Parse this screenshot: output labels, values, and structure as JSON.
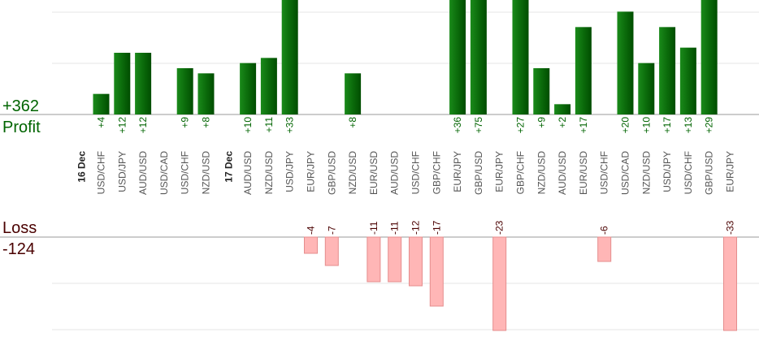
{
  "summary": {
    "profit_total": "+362",
    "profit_label": "Profit",
    "loss_label": "Loss",
    "loss_total": "-124"
  },
  "colors": {
    "profit_bar": "#0b6b0b",
    "profit_text": "#006400",
    "loss_bar": "#ffb6b6",
    "loss_bar_edge": "#e58d8d",
    "loss_text": "#4a0000",
    "axis_text": "#555555",
    "grid": "#e6e6e6"
  },
  "chart_data": {
    "type": "bar",
    "grid": true,
    "date_labels": [
      {
        "label": "16 Dec",
        "before_index": 0
      },
      {
        "label": "17 Dec",
        "before_index": 6
      }
    ],
    "categories": [
      "USD/CHF",
      "USD/JPY",
      "AUD/USD",
      "USD/CAD",
      "USD/CHF",
      "NZD/USD",
      "AUD/USD",
      "NZD/USD",
      "USD/JPY",
      "EUR/JPY",
      "GBP/USD",
      "NZD/USD",
      "EUR/USD",
      "AUD/USD",
      "USD/CHF",
      "GBP/CHF",
      "EUR/JPY",
      "GBP/USD",
      "EUR/JPY",
      "GBP/CHF",
      "NZD/USD",
      "AUD/USD",
      "EUR/USD",
      "USD/CHF",
      "USD/CAD",
      "NZD/USD",
      "USD/JPY",
      "USD/CHF",
      "GBP/USD",
      "EUR/JPY"
    ],
    "series": [
      {
        "name": "Profit",
        "values": [
          4,
          12,
          12,
          null,
          9,
          8,
          10,
          11,
          33,
          null,
          null,
          8,
          null,
          null,
          null,
          null,
          36,
          75,
          null,
          27,
          9,
          2,
          17,
          null,
          20,
          10,
          17,
          13,
          29,
          null
        ],
        "labels": [
          "+4",
          "+12",
          "+12",
          "",
          "+9",
          "+8",
          "+10",
          "+11",
          "+33",
          "",
          "",
          "+8",
          "",
          "",
          "",
          "",
          "+36",
          "+75",
          "",
          "+27",
          "+9",
          "+2",
          "+17",
          "",
          "+20",
          "+10",
          "+17",
          "+13",
          "+29",
          ""
        ]
      },
      {
        "name": "Loss",
        "values": [
          null,
          null,
          null,
          null,
          null,
          null,
          null,
          null,
          null,
          -4,
          -7,
          null,
          -11,
          -11,
          -12,
          -17,
          null,
          null,
          -23,
          null,
          null,
          null,
          null,
          -6,
          null,
          null,
          null,
          null,
          null,
          -33
        ],
        "labels": [
          "",
          "",
          "",
          "",
          "",
          "",
          "",
          "",
          "",
          "-4",
          "-7",
          "",
          "-11",
          "-11",
          "-12",
          "-17",
          "",
          "",
          "-23",
          "",
          "",
          "",
          "",
          "-6",
          "",
          "",
          "",
          "",
          "",
          "-33"
        ]
      }
    ]
  }
}
